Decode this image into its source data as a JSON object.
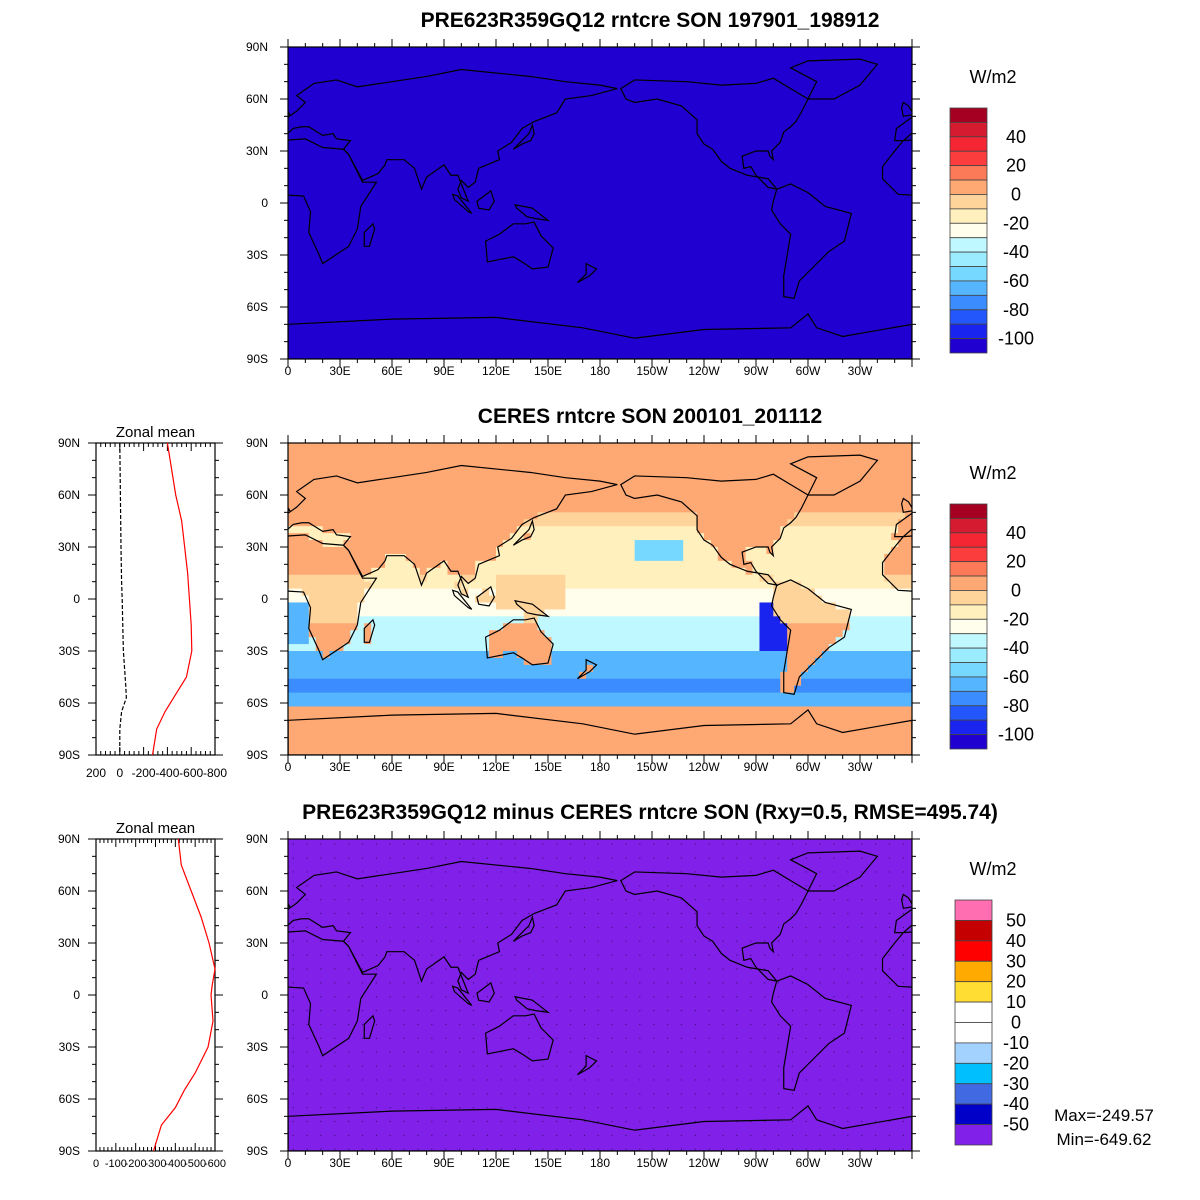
{
  "panels": [
    {
      "title": "PRE623R359GQ12 rntcre SON 197901_198912",
      "units": "W/m2",
      "field": "model"
    },
    {
      "title": "CERES rntcre SON 200101_201112",
      "units": "W/m2",
      "field": "obs",
      "zonal_title": "Zonal mean"
    },
    {
      "title": "PRE623R359GQ12 minus CERES rntcre SON (Rxy=0.5, RMSE=495.74)",
      "units": "W/m2",
      "field": "diff",
      "zonal_title": "Zonal mean",
      "max_label": "Max=-249.57",
      "min_label": "Min=-649.62"
    }
  ],
  "lat_labels": [
    "90N",
    "60N",
    "30N",
    "0",
    "30S",
    "60S",
    "90S"
  ],
  "lon_labels": [
    "0",
    "30E",
    "60E",
    "90E",
    "120E",
    "150E",
    "180",
    "150W",
    "120W",
    "90W",
    "60W",
    "30W"
  ],
  "colorbar_main": {
    "labels": [
      "40",
      "20",
      "0",
      "-20",
      "-40",
      "-60",
      "-80",
      "-100"
    ],
    "colors": [
      "#a50021",
      "#d41b30",
      "#f42634",
      "#fb3d3d",
      "#fd7a58",
      "#fea874",
      "#ffd49b",
      "#fff0be",
      "#fffdeb",
      "#bff8ff",
      "#9becff",
      "#76d8ff",
      "#55b6ff",
      "#3a8cff",
      "#2357fb",
      "#1a24ef",
      "#2000d0"
    ]
  },
  "colorbar_diff": {
    "labels": [
      "50",
      "40",
      "30",
      "20",
      "10",
      "0",
      "-10",
      "-20",
      "-30",
      "-40",
      "-50"
    ],
    "colors": [
      "#ff6eb0",
      "#c40000",
      "#ff0000",
      "#ffaa00",
      "#ffdd33",
      "#ffffff",
      "#ffffff",
      "#a3d2ff",
      "#00bfff",
      "#4169e1",
      "#0000c8",
      "#8020e8"
    ]
  },
  "chart_data": [
    {
      "type": "line",
      "title": "Zonal mean",
      "panel": "CERES",
      "x_ticks": [
        "200",
        "0",
        "-200",
        "-400",
        "-600",
        "-800"
      ],
      "xlim": [
        200,
        -800
      ],
      "y_ticks": [
        "90N",
        "60N",
        "30N",
        "0",
        "30S",
        "60S",
        "90S"
      ],
      "series": [
        {
          "name": "model",
          "color": "#ff0000",
          "lat": [
            90,
            60,
            45,
            30,
            15,
            0,
            -15,
            -30,
            -45,
            -55,
            -65,
            -75,
            -90
          ],
          "values": [
            -400,
            -470,
            -520,
            -545,
            -570,
            -585,
            -600,
            -605,
            -560,
            -470,
            -380,
            -310,
            -275
          ]
        },
        {
          "name": "CERES",
          "color": "#000000",
          "dash": true,
          "lat": [
            90,
            60,
            30,
            10,
            0,
            -30,
            -50,
            -57,
            -65,
            -75,
            -90
          ],
          "values": [
            0,
            -5,
            -10,
            -15,
            -20,
            -30,
            -50,
            -55,
            -15,
            0,
            0
          ]
        }
      ]
    },
    {
      "type": "line",
      "title": "Zonal mean",
      "panel": "difference",
      "x_ticks": [
        "0",
        "-100",
        "-200",
        "-300",
        "-400",
        "-500",
        "-600"
      ],
      "xlim": [
        0,
        -600
      ],
      "y_ticks": [
        "90N",
        "60N",
        "30N",
        "0",
        "30S",
        "60S",
        "90S"
      ],
      "series": [
        {
          "name": "difference",
          "color": "#ff0000",
          "lat": [
            90,
            75,
            60,
            45,
            30,
            15,
            5,
            0,
            -15,
            -30,
            -45,
            -55,
            -65,
            -75,
            -90
          ],
          "values": [
            -415,
            -430,
            -480,
            -530,
            -570,
            -600,
            -585,
            -580,
            -590,
            -565,
            -500,
            -445,
            -400,
            -330,
            -290
          ]
        }
      ]
    }
  ]
}
